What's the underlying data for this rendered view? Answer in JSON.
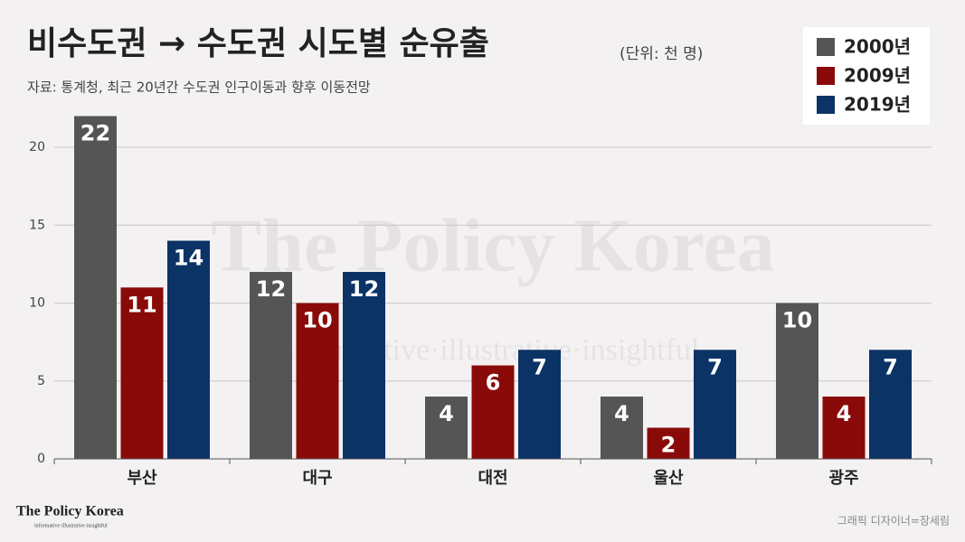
{
  "chart_data": {
    "type": "bar",
    "title": "비수도권 → 수도권 시도별 순유출",
    "subtitle": "(단위: 천 명)",
    "source": "자료: 통계청, 최근 20년간 수도권 인구이동과 향후 이동전망",
    "categories": [
      "부산",
      "대구",
      "대전",
      "울산",
      "광주"
    ],
    "series": [
      {
        "name": "2000년",
        "color": "#555555",
        "values": [
          22,
          12,
          4,
          4,
          10
        ]
      },
      {
        "name": "2009년",
        "color": "#8a0a0a",
        "values": [
          11,
          10,
          6,
          2,
          4
        ]
      },
      {
        "name": "2019년",
        "color": "#0b3366",
        "values": [
          14,
          12,
          7,
          7,
          7
        ]
      }
    ],
    "ylim": [
      0,
      22
    ],
    "yticks": [
      0,
      5,
      10,
      15,
      20
    ],
    "grid": true,
    "legend": "top-right",
    "watermark": "The Policy Korea",
    "watermark_tagline": "informative·illustrative·insightful",
    "brand": "The Policy Korea",
    "brand_tagline": "informative·illustrative·insightful",
    "credit": "그래픽 디자이너=장세림"
  }
}
